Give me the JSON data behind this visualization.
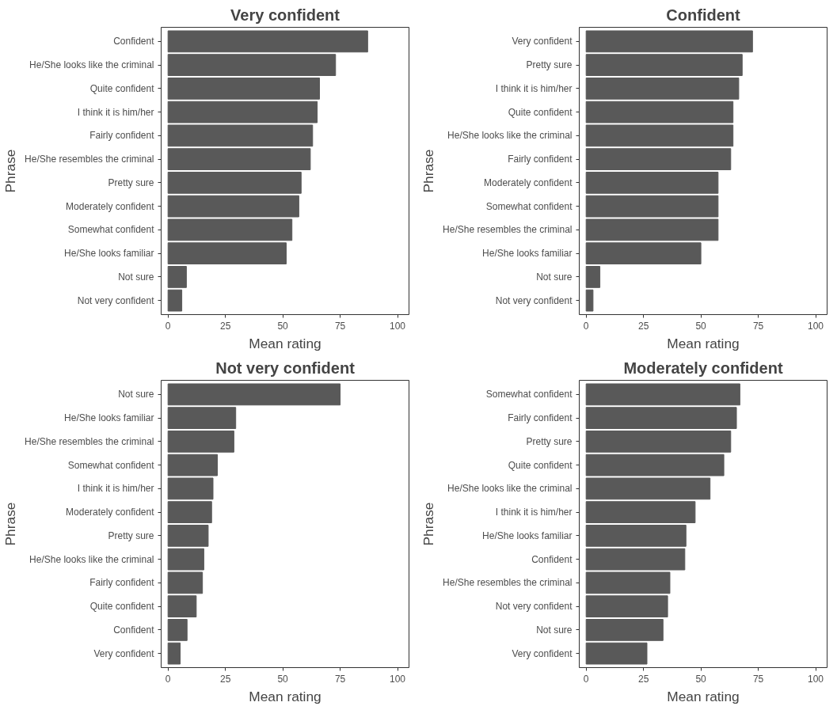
{
  "chart_data": [
    {
      "type": "bar",
      "orientation": "horizontal",
      "title": "Very confident",
      "xlabel": "Mean rating",
      "ylabel": "Phrase",
      "color": "#595959",
      "grid": false,
      "xlim": [
        -3,
        105
      ],
      "xticks": [
        0,
        25,
        50,
        75,
        100
      ],
      "categories": [
        "Confident",
        "He/She looks like the criminal",
        "Quite confident",
        "I think it is him/her",
        "Fairly confident",
        "He/She resembles the criminal",
        "Pretty sure",
        "Moderately confident",
        "Somewhat confident",
        "He/She looks familiar",
        "Not sure",
        "Not very confident"
      ],
      "values": [
        87,
        73,
        66,
        65,
        63,
        62,
        58,
        57,
        54,
        51.5,
        8,
        6
      ]
    },
    {
      "type": "bar",
      "orientation": "horizontal",
      "title": "Confident",
      "xlabel": "Mean rating",
      "ylabel": "Phrase",
      "color": "#595959",
      "grid": false,
      "xlim": [
        -3,
        105
      ],
      "xticks": [
        0,
        25,
        50,
        75,
        100
      ],
      "categories": [
        "Very confident",
        "Pretty sure",
        "I think it is him/her",
        "Quite confident",
        "He/She looks like the criminal",
        "Fairly confident",
        "Moderately confident",
        "Somewhat confident",
        "He/She resembles the criminal",
        "He/She looks familiar",
        "Not sure",
        "Not very confident"
      ],
      "values": [
        72.5,
        68,
        66.5,
        64,
        64,
        63,
        57.5,
        57.5,
        57.5,
        50,
        6,
        3
      ]
    },
    {
      "type": "bar",
      "orientation": "horizontal",
      "title": "Not very confident",
      "xlabel": "Mean rating",
      "ylabel": "Phrase",
      "color": "#595959",
      "grid": false,
      "xlim": [
        -3,
        105
      ],
      "xticks": [
        0,
        25,
        50,
        75,
        100
      ],
      "categories": [
        "Not sure",
        "He/She looks familiar",
        "He/She resembles the criminal",
        "Somewhat confident",
        "I think it is him/her",
        "Moderately confident",
        "Pretty sure",
        "He/She looks like the criminal",
        "Fairly confident",
        "Quite confident",
        "Confident",
        "Very confident"
      ],
      "values": [
        75,
        29.5,
        28.7,
        21.5,
        19.6,
        19,
        17.5,
        15.6,
        15,
        12.3,
        8.3,
        5.3
      ]
    },
    {
      "type": "bar",
      "orientation": "horizontal",
      "title": "Moderately confident",
      "xlabel": "Mean rating",
      "ylabel": "Phrase",
      "color": "#595959",
      "grid": false,
      "xlim": [
        -3,
        105
      ],
      "xticks": [
        0,
        25,
        50,
        75,
        100
      ],
      "categories": [
        "Somewhat confident",
        "Fairly confident",
        "Pretty sure",
        "Quite confident",
        "He/She looks like the criminal",
        "I think it is him/her",
        "He/She looks familiar",
        "Confident",
        "He/She resembles the criminal",
        "Not very confident",
        "Not sure",
        "Very confident"
      ],
      "values": [
        67,
        65.5,
        63,
        60,
        54,
        47.5,
        43.5,
        43,
        36.5,
        35.5,
        33.5,
        26.5
      ]
    }
  ]
}
